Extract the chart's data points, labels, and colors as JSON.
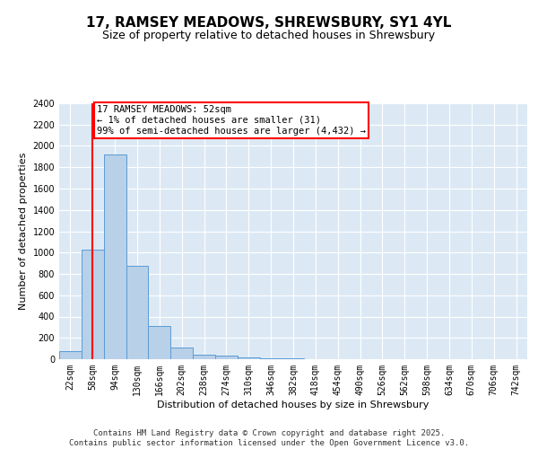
{
  "title": "17, RAMSEY MEADOWS, SHREWSBURY, SY1 4YL",
  "subtitle": "Size of property relative to detached houses in Shrewsbury",
  "xlabel": "Distribution of detached houses by size in Shrewsbury",
  "ylabel": "Number of detached properties",
  "bar_color": "#b8d0e8",
  "bar_edge_color": "#5b9bd5",
  "background_color": "#dce9f5",
  "grid_color": "#ffffff",
  "bins": [
    "22sqm",
    "58sqm",
    "94sqm",
    "130sqm",
    "166sqm",
    "202sqm",
    "238sqm",
    "274sqm",
    "310sqm",
    "346sqm",
    "382sqm",
    "418sqm",
    "454sqm",
    "490sqm",
    "526sqm",
    "562sqm",
    "598sqm",
    "634sqm",
    "670sqm",
    "706sqm",
    "742sqm"
  ],
  "values": [
    80,
    1030,
    1920,
    880,
    315,
    110,
    45,
    35,
    15,
    8,
    5,
    3,
    2,
    2,
    1,
    1,
    1,
    1,
    1,
    1,
    0
  ],
  "ylim": [
    0,
    2400
  ],
  "yticks": [
    0,
    200,
    400,
    600,
    800,
    1000,
    1200,
    1400,
    1600,
    1800,
    2000,
    2200,
    2400
  ],
  "red_line_x": 1.0,
  "annotation_text": "17 RAMSEY MEADOWS: 52sqm\n← 1% of detached houses are smaller (31)\n99% of semi-detached houses are larger (4,432) →",
  "footer": "Contains HM Land Registry data © Crown copyright and database right 2025.\nContains public sector information licensed under the Open Government Licence v3.0.",
  "title_fontsize": 11,
  "subtitle_fontsize": 9,
  "axis_label_fontsize": 8,
  "tick_fontsize": 7,
  "annotation_fontsize": 7.5,
  "footer_fontsize": 6.5
}
